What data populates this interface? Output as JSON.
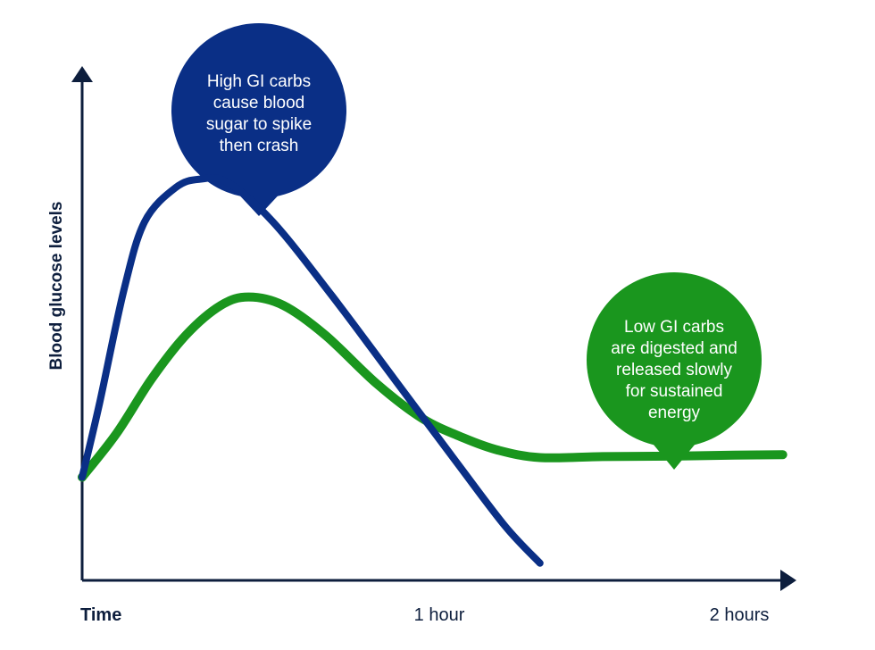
{
  "chart_data": {
    "type": "line",
    "title": "",
    "xlabel": "",
    "ylabel": "Blood glucose levels",
    "x_ticks": [
      {
        "x": 0,
        "label": "Time"
      },
      {
        "x": 1,
        "label": "1 hour"
      },
      {
        "x": 2,
        "label": "2 hours"
      }
    ],
    "xlim": [
      0,
      2.08
    ],
    "ylim": [
      0,
      10
    ],
    "grid": false,
    "series": [
      {
        "name": "",
        "color": "#0a2f86",
        "x": [
          0,
          0.05,
          0.12,
          0.18,
          0.27,
          0.34,
          0.42,
          0.55,
          0.72,
          0.9,
          1.08,
          1.22,
          1.32
        ],
        "y": [
          2.1,
          3.6,
          5.9,
          7.3,
          8.0,
          8.17,
          8.1,
          7.3,
          5.8,
          4.1,
          2.4,
          1.1,
          0.35
        ]
      },
      {
        "name": "",
        "color": "#1a961e",
        "x": [
          0,
          0.1,
          0.2,
          0.3,
          0.4,
          0.48,
          0.58,
          0.7,
          0.85,
          0.98,
          1.1,
          1.2,
          1.32,
          1.5,
          1.7,
          1.88,
          2.02
        ],
        "y": [
          2.1,
          3.0,
          4.1,
          5.0,
          5.6,
          5.77,
          5.6,
          5.0,
          4.0,
          3.3,
          2.9,
          2.65,
          2.5,
          2.52,
          2.53,
          2.55,
          2.56
        ]
      }
    ],
    "annotations": [
      {
        "series": 0,
        "text": "High GI carbs\ncause blood\nsugar to spike\nthen crash",
        "color": "#0a2f86"
      },
      {
        "series": 1,
        "text": "Low GI carbs\nare digested and\nreleased slowly\nfor sustained\nenergy",
        "color": "#1a961e"
      }
    ]
  }
}
